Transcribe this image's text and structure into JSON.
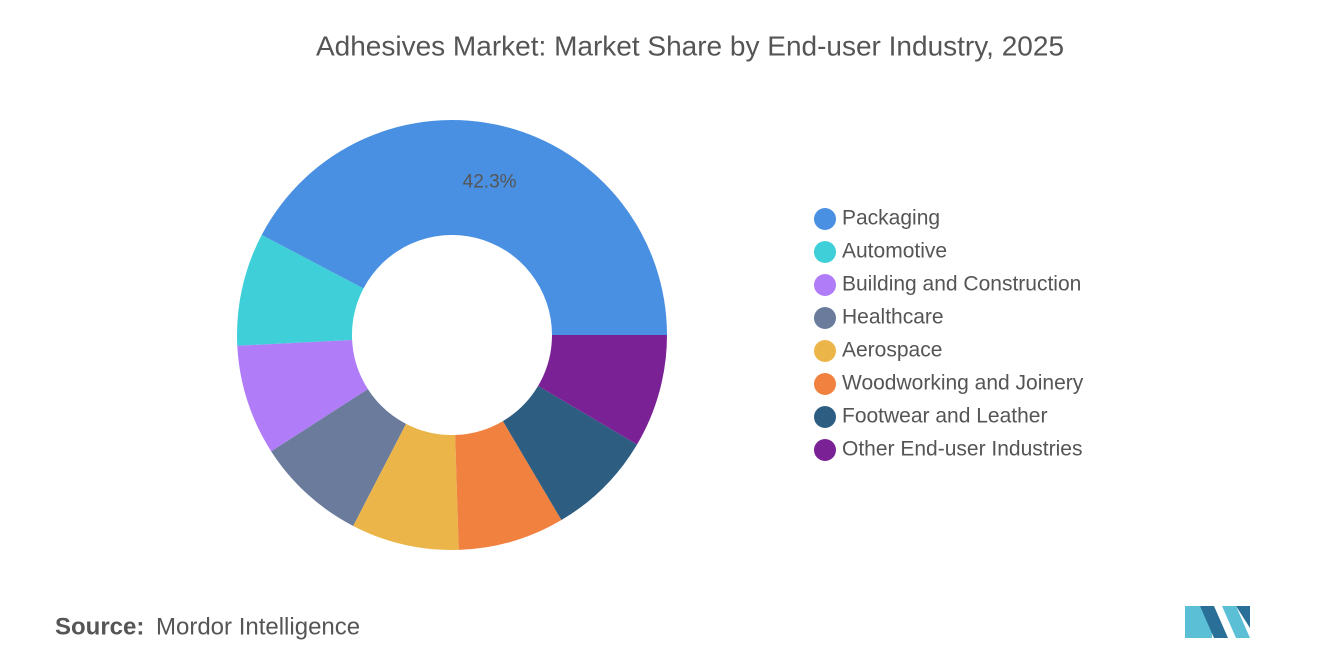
{
  "chart_data": {
    "type": "donut",
    "title": "Adhesives Market: Market Share by End-user Industry, 2025",
    "categories": [
      "Packaging",
      "Automotive",
      "Building and Construction",
      "Healthcare",
      "Aerospace",
      "Woodworking and Joinery",
      "Footwear and Leather",
      "Other End-user Industries"
    ],
    "values": [
      42.3,
      8.5,
      8.3,
      8.3,
      8.1,
      8.0,
      8.0,
      8.5
    ],
    "value_labels": [
      "42.3%",
      null,
      null,
      null,
      null,
      null,
      null,
      null
    ],
    "colors": [
      "#4a90e2",
      "#3ecfd9",
      "#b07cf7",
      "#6a7b9c",
      "#ebb54a",
      "#f0813f",
      "#2d5e82",
      "#7a2196"
    ],
    "legend": "right"
  },
  "source": {
    "label": "Source:",
    "text": "Mordor Intelligence"
  }
}
